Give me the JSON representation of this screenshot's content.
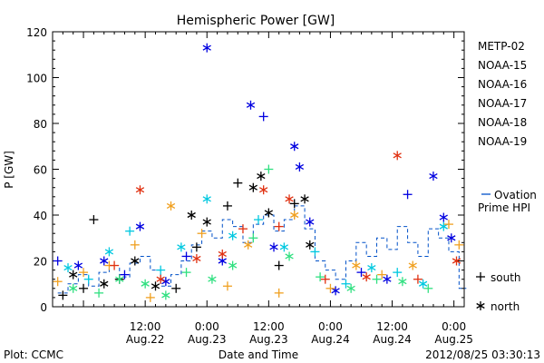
{
  "chart_data": {
    "type": "scatter",
    "title": "Hemispheric Power [GW]",
    "xlabel": "Date and Time",
    "ylabel": "P [GW]",
    "ylim": [
      0,
      120
    ],
    "yticks": [
      "0",
      "20",
      "40",
      "60",
      "80",
      "100",
      "120"
    ],
    "xlim": [
      "2012-08-21T18:00",
      "2012-08-25T02:00"
    ],
    "xticks": [
      {
        "t": "2012-08-22T12:00",
        "line1": "12:00",
        "line2": "Aug.22"
      },
      {
        "t": "2012-08-23T00:00",
        "line1": "0:00",
        "line2": "Aug.23"
      },
      {
        "t": "2012-08-23T12:00",
        "line1": "12:00",
        "line2": "Aug.23"
      },
      {
        "t": "2012-08-24T00:00",
        "line1": "0:00",
        "line2": "Aug.24"
      },
      {
        "t": "2012-08-24T12:00",
        "line1": "12:00",
        "line2": "Aug.24"
      },
      {
        "t": "2012-08-25T00:00",
        "line1": "0:00",
        "line2": "Aug.25"
      }
    ],
    "legend_position": "right",
    "series": [
      {
        "name": "METP-02",
        "color": "#000000",
        "points": [
          {
            "t": "2012-08-21T20:00",
            "y": 5,
            "m": "plus"
          },
          {
            "t": "2012-08-21T22:00",
            "y": 14,
            "m": "star"
          },
          {
            "t": "2012-08-22T00:00",
            "y": 8,
            "m": "plus"
          },
          {
            "t": "2012-08-22T02:00",
            "y": 38,
            "m": "plus"
          },
          {
            "t": "2012-08-22T04:00",
            "y": 10,
            "m": "star"
          },
          {
            "t": "2012-08-22T07:00",
            "y": 12,
            "m": "plus"
          },
          {
            "t": "2012-08-22T10:00",
            "y": 20,
            "m": "star"
          },
          {
            "t": "2012-08-22T14:00",
            "y": 9,
            "m": "star"
          },
          {
            "t": "2012-08-22T18:00",
            "y": 8,
            "m": "plus"
          },
          {
            "t": "2012-08-22T21:00",
            "y": 40,
            "m": "star"
          },
          {
            "t": "2012-08-22T22:00",
            "y": 26,
            "m": "plus"
          },
          {
            "t": "2012-08-23T00:00",
            "y": 37,
            "m": "star"
          },
          {
            "t": "2012-08-23T04:00",
            "y": 44,
            "m": "plus"
          },
          {
            "t": "2012-08-23T06:00",
            "y": 54,
            "m": "plus"
          },
          {
            "t": "2012-08-23T09:00",
            "y": 52,
            "m": "star"
          },
          {
            "t": "2012-08-23T10:30",
            "y": 57,
            "m": "star"
          },
          {
            "t": "2012-08-23T12:00",
            "y": 41,
            "m": "star"
          },
          {
            "t": "2012-08-23T14:00",
            "y": 18,
            "m": "plus"
          },
          {
            "t": "2012-08-23T17:00",
            "y": 45,
            "m": "plus"
          },
          {
            "t": "2012-08-23T19:00",
            "y": 47,
            "m": "star"
          },
          {
            "t": "2012-08-23T20:00",
            "y": 27,
            "m": "star"
          }
        ]
      },
      {
        "name": "NOAA-15",
        "color": "#0000e0",
        "points": [
          {
            "t": "2012-08-21T19:00",
            "y": 20,
            "m": "plus"
          },
          {
            "t": "2012-08-21T23:00",
            "y": 18,
            "m": "star"
          },
          {
            "t": "2012-08-22T04:00",
            "y": 20,
            "m": "star"
          },
          {
            "t": "2012-08-22T08:00",
            "y": 14,
            "m": "plus"
          },
          {
            "t": "2012-08-22T11:00",
            "y": 35,
            "m": "star"
          },
          {
            "t": "2012-08-22T16:00",
            "y": 11,
            "m": "star"
          },
          {
            "t": "2012-08-22T20:00",
            "y": 22,
            "m": "plus"
          },
          {
            "t": "2012-08-23T00:00",
            "y": 113,
            "m": "star"
          },
          {
            "t": "2012-08-23T03:00",
            "y": 20,
            "m": "star"
          },
          {
            "t": "2012-08-23T08:30",
            "y": 88,
            "m": "star"
          },
          {
            "t": "2012-08-23T11:00",
            "y": 83,
            "m": "plus"
          },
          {
            "t": "2012-08-23T13:00",
            "y": 26,
            "m": "star"
          },
          {
            "t": "2012-08-23T17:00",
            "y": 70,
            "m": "star"
          },
          {
            "t": "2012-08-23T18:00",
            "y": 61,
            "m": "star"
          },
          {
            "t": "2012-08-23T20:00",
            "y": 37,
            "m": "star"
          },
          {
            "t": "2012-08-24T01:00",
            "y": 7,
            "m": "star"
          },
          {
            "t": "2012-08-24T06:00",
            "y": 15,
            "m": "plus"
          },
          {
            "t": "2012-08-24T11:00",
            "y": 12,
            "m": "star"
          },
          {
            "t": "2012-08-24T15:00",
            "y": 49,
            "m": "plus"
          },
          {
            "t": "2012-08-24T20:00",
            "y": 57,
            "m": "star"
          },
          {
            "t": "2012-08-24T22:00",
            "y": 39,
            "m": "star"
          },
          {
            "t": "2012-08-24T23:30",
            "y": 30,
            "m": "star"
          }
        ]
      },
      {
        "name": "NOAA-16",
        "color": "#00c8e0",
        "points": [
          {
            "t": "2012-08-21T21:00",
            "y": 17,
            "m": "star"
          },
          {
            "t": "2012-08-22T01:00",
            "y": 12,
            "m": "plus"
          },
          {
            "t": "2012-08-22T05:00",
            "y": 24,
            "m": "star"
          },
          {
            "t": "2012-08-22T09:00",
            "y": 33,
            "m": "plus"
          },
          {
            "t": "2012-08-22T15:00",
            "y": 16,
            "m": "plus"
          },
          {
            "t": "2012-08-22T19:00",
            "y": 26,
            "m": "star"
          },
          {
            "t": "2012-08-23T00:00",
            "y": 47,
            "m": "star"
          },
          {
            "t": "2012-08-23T05:00",
            "y": 31,
            "m": "star"
          },
          {
            "t": "2012-08-23T10:00",
            "y": 38,
            "m": "plus"
          },
          {
            "t": "2012-08-23T15:00",
            "y": 26,
            "m": "star"
          },
          {
            "t": "2012-08-23T21:00",
            "y": 24,
            "m": "plus"
          },
          {
            "t": "2012-08-24T03:00",
            "y": 10,
            "m": "plus"
          },
          {
            "t": "2012-08-24T08:00",
            "y": 17,
            "m": "star"
          },
          {
            "t": "2012-08-24T13:00",
            "y": 15,
            "m": "plus"
          },
          {
            "t": "2012-08-24T18:00",
            "y": 10,
            "m": "star"
          },
          {
            "t": "2012-08-24T22:00",
            "y": 35,
            "m": "star"
          }
        ]
      },
      {
        "name": "NOAA-17",
        "color": "#30e080",
        "points": [
          {
            "t": "2012-08-21T22:00",
            "y": 8,
            "m": "star"
          },
          {
            "t": "2012-08-22T03:00",
            "y": 6,
            "m": "plus"
          },
          {
            "t": "2012-08-22T07:00",
            "y": 12,
            "m": "star"
          },
          {
            "t": "2012-08-22T12:00",
            "y": 10,
            "m": "star"
          },
          {
            "t": "2012-08-22T16:00",
            "y": 5,
            "m": "star"
          },
          {
            "t": "2012-08-22T20:00",
            "y": 15,
            "m": "plus"
          },
          {
            "t": "2012-08-23T01:00",
            "y": 12,
            "m": "star"
          },
          {
            "t": "2012-08-23T05:00",
            "y": 18,
            "m": "star"
          },
          {
            "t": "2012-08-23T09:00",
            "y": 30,
            "m": "plus"
          },
          {
            "t": "2012-08-23T12:00",
            "y": 60,
            "m": "plus"
          },
          {
            "t": "2012-08-23T16:00",
            "y": 22,
            "m": "star"
          },
          {
            "t": "2012-08-23T22:00",
            "y": 13,
            "m": "plus"
          },
          {
            "t": "2012-08-24T04:00",
            "y": 8,
            "m": "star"
          },
          {
            "t": "2012-08-24T09:00",
            "y": 12,
            "m": "plus"
          },
          {
            "t": "2012-08-24T14:00",
            "y": 11,
            "m": "star"
          },
          {
            "t": "2012-08-24T19:00",
            "y": 8,
            "m": "plus"
          }
        ]
      },
      {
        "name": "NOAA-18",
        "color": "#f0a020",
        "points": [
          {
            "t": "2012-08-21T19:00",
            "y": 11,
            "m": "plus"
          },
          {
            "t": "2012-08-22T00:00",
            "y": 15,
            "m": "plus"
          },
          {
            "t": "2012-08-22T05:00",
            "y": 18,
            "m": "plus"
          },
          {
            "t": "2012-08-22T10:00",
            "y": 27,
            "m": "plus"
          },
          {
            "t": "2012-08-22T13:00",
            "y": 4,
            "m": "plus"
          },
          {
            "t": "2012-08-22T17:00",
            "y": 44,
            "m": "star"
          },
          {
            "t": "2012-08-22T23:00",
            "y": 32,
            "m": "plus"
          },
          {
            "t": "2012-08-23T04:00",
            "y": 9,
            "m": "plus"
          },
          {
            "t": "2012-08-23T08:00",
            "y": 27,
            "m": "star"
          },
          {
            "t": "2012-08-23T14:00",
            "y": 6,
            "m": "plus"
          },
          {
            "t": "2012-08-23T17:00",
            "y": 40,
            "m": "star"
          },
          {
            "t": "2012-08-24T00:00",
            "y": 8,
            "m": "plus"
          },
          {
            "t": "2012-08-24T05:00",
            "y": 18,
            "m": "star"
          },
          {
            "t": "2012-08-24T10:00",
            "y": 14,
            "m": "plus"
          },
          {
            "t": "2012-08-24T16:00",
            "y": 18,
            "m": "star"
          },
          {
            "t": "2012-08-24T23:00",
            "y": 36,
            "m": "plus"
          },
          {
            "t": "2012-08-25T01:00",
            "y": 27,
            "m": "plus"
          }
        ]
      },
      {
        "name": "NOAA-19",
        "color": "#e03010",
        "points": [
          {
            "t": "2012-08-22T06:00",
            "y": 18,
            "m": "plus"
          },
          {
            "t": "2012-08-22T11:00",
            "y": 51,
            "m": "star"
          },
          {
            "t": "2012-08-22T15:00",
            "y": 12,
            "m": "star"
          },
          {
            "t": "2012-08-22T22:00",
            "y": 21,
            "m": "star"
          },
          {
            "t": "2012-08-23T03:00",
            "y": 23,
            "m": "star"
          },
          {
            "t": "2012-08-23T07:00",
            "y": 34,
            "m": "plus"
          },
          {
            "t": "2012-08-23T11:00",
            "y": 51,
            "m": "star"
          },
          {
            "t": "2012-08-23T14:00",
            "y": 35,
            "m": "plus"
          },
          {
            "t": "2012-08-23T16:00",
            "y": 47,
            "m": "star"
          },
          {
            "t": "2012-08-23T23:00",
            "y": 12,
            "m": "plus"
          },
          {
            "t": "2012-08-24T07:00",
            "y": 13,
            "m": "star"
          },
          {
            "t": "2012-08-24T13:00",
            "y": 66,
            "m": "star"
          },
          {
            "t": "2012-08-24T17:00",
            "y": 12,
            "m": "plus"
          },
          {
            "t": "2012-08-25T00:30",
            "y": 20,
            "m": "star"
          }
        ]
      }
    ],
    "ovation": {
      "name_line1": "Ovation",
      "name_line2": "Prime HPI",
      "color": "#0050c8",
      "points": [
        {
          "t": "2012-08-21T19:00",
          "y": 6
        },
        {
          "t": "2012-08-21T21:00",
          "y": 10
        },
        {
          "t": "2012-08-21T23:00",
          "y": 14
        },
        {
          "t": "2012-08-22T01:00",
          "y": 9
        },
        {
          "t": "2012-08-22T03:00",
          "y": 15
        },
        {
          "t": "2012-08-22T05:00",
          "y": 18
        },
        {
          "t": "2012-08-22T07:00",
          "y": 13
        },
        {
          "t": "2012-08-22T09:00",
          "y": 19
        },
        {
          "t": "2012-08-22T11:00",
          "y": 22
        },
        {
          "t": "2012-08-22T13:00",
          "y": 16
        },
        {
          "t": "2012-08-22T15:00",
          "y": 9
        },
        {
          "t": "2012-08-22T17:00",
          "y": 14
        },
        {
          "t": "2012-08-22T19:00",
          "y": 20
        },
        {
          "t": "2012-08-22T21:00",
          "y": 27
        },
        {
          "t": "2012-08-22T23:00",
          "y": 33
        },
        {
          "t": "2012-08-23T01:00",
          "y": 30
        },
        {
          "t": "2012-08-23T03:00",
          "y": 38
        },
        {
          "t": "2012-08-23T05:00",
          "y": 35
        },
        {
          "t": "2012-08-23T07:00",
          "y": 28
        },
        {
          "t": "2012-08-23T09:00",
          "y": 36
        },
        {
          "t": "2012-08-23T11:00",
          "y": 40
        },
        {
          "t": "2012-08-23T13:00",
          "y": 33
        },
        {
          "t": "2012-08-23T15:00",
          "y": 38
        },
        {
          "t": "2012-08-23T17:00",
          "y": 44
        },
        {
          "t": "2012-08-23T19:00",
          "y": 34
        },
        {
          "t": "2012-08-23T21:00",
          "y": 20
        },
        {
          "t": "2012-08-23T23:00",
          "y": 16
        },
        {
          "t": "2012-08-24T01:00",
          "y": 12
        },
        {
          "t": "2012-08-24T03:00",
          "y": 20
        },
        {
          "t": "2012-08-24T05:00",
          "y": 28
        },
        {
          "t": "2012-08-24T07:00",
          "y": 22
        },
        {
          "t": "2012-08-24T09:00",
          "y": 30
        },
        {
          "t": "2012-08-24T11:00",
          "y": 25
        },
        {
          "t": "2012-08-24T13:00",
          "y": 35
        },
        {
          "t": "2012-08-24T15:00",
          "y": 28
        },
        {
          "t": "2012-08-24T17:00",
          "y": 22
        },
        {
          "t": "2012-08-24T19:00",
          "y": 34
        },
        {
          "t": "2012-08-24T21:00",
          "y": 30
        },
        {
          "t": "2012-08-24T23:00",
          "y": 24
        },
        {
          "t": "2012-08-25T01:00",
          "y": 8
        }
      ]
    },
    "marker_legend": {
      "plus": "south",
      "star": "north"
    }
  },
  "footer": {
    "left": "Plot: CCMC",
    "right": "2012/08/25 03:30:13"
  }
}
